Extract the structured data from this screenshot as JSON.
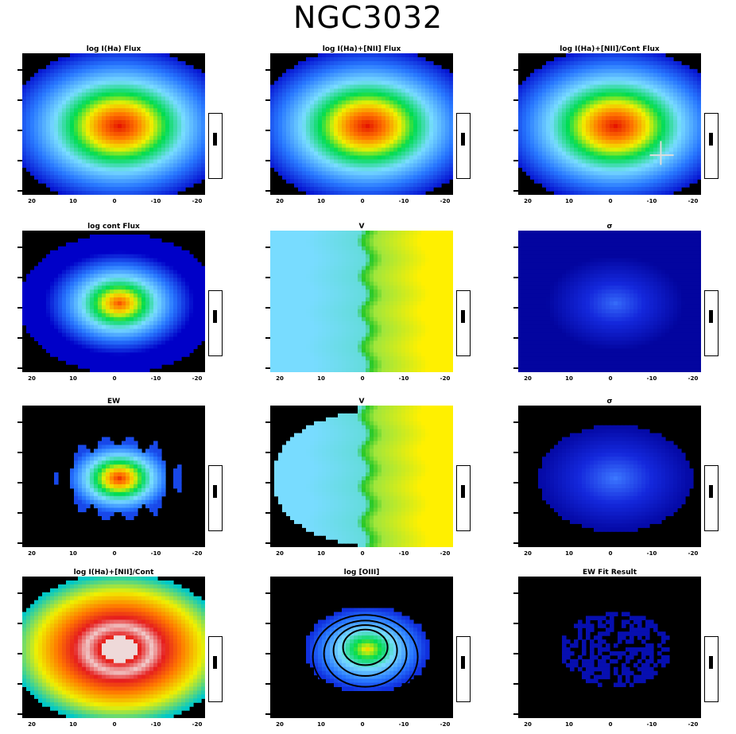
{
  "title": "NGC3032",
  "panels": [
    {
      "id": "p1",
      "title": "log I(Ha) Flux",
      "cbar_label": "",
      "map": "radial",
      "palette": "blue_to_red",
      "peak": 0.7
    },
    {
      "id": "p2",
      "title": "log I(Ha)+[NII] Flux",
      "cbar_label": "",
      "map": "radial",
      "palette": "blue_to_red",
      "peak": 0.85
    },
    {
      "id": "p3",
      "title": "log I(Ha)+[NII]/Cont Flux",
      "cbar_label": "",
      "map": "radial",
      "palette": "blue_to_red",
      "peak": 0.85
    },
    {
      "id": "p4",
      "title": "log cont Flux",
      "cbar_label": "",
      "map": "cont",
      "palette": "blue_to_red",
      "peak": 1.0
    },
    {
      "id": "p5",
      "title": "V",
      "cbar_label": "",
      "map": "velocity",
      "palette": "cyan_yellow",
      "peak": 0.5
    },
    {
      "id": "p6",
      "title": "σ",
      "cbar_label": "",
      "map": "disp",
      "palette": "deep_blue",
      "peak": 0.3
    },
    {
      "id": "p7",
      "title": "EW",
      "cbar_label": "",
      "map": "ew",
      "palette": "blue_to_red",
      "peak": 0.9
    },
    {
      "id": "p8",
      "title": "V",
      "cbar_label": "",
      "map": "velocity2",
      "palette": "cyan_yellow",
      "peak": 0.5
    },
    {
      "id": "p9",
      "title": "σ",
      "cbar_label": "",
      "map": "disp2",
      "palette": "deep_blue",
      "peak": 0.3
    },
    {
      "id": "p10",
      "title": "log I(Ha)+[NII]/Cont",
      "cbar_label": "",
      "map": "ratio",
      "palette": "ratio",
      "peak": 0.9
    },
    {
      "id": "p11",
      "title": "log [OIII]",
      "cbar_label": "",
      "map": "oiii",
      "palette": "blue_to_red",
      "peak": 0.5
    },
    {
      "id": "p12",
      "title": "EW Fit Result",
      "cbar_label": "",
      "map": "ewfit",
      "palette": "deep_blue",
      "peak": 0.2
    }
  ],
  "x_ticks": [
    "20",
    "10",
    "0",
    "-10",
    "-20"
  ]
}
